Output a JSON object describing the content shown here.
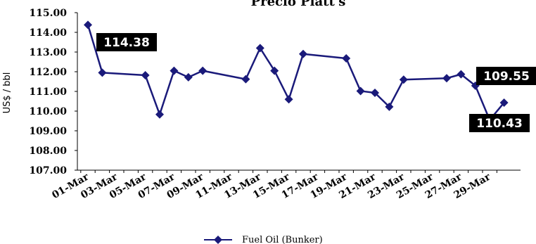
{
  "chart_data": {
    "type": "line",
    "title": "Precio Platt's",
    "ylabel": "US$ / bbl",
    "xlabel": "",
    "ylim": [
      107,
      115
    ],
    "ytick_step": 1,
    "ytick_decimals": 2,
    "x_tick_labels": [
      "01-Mar",
      "03-Mar",
      "05-Mar",
      "07-Mar",
      "09-Mar",
      "11-Mar",
      "13-Mar",
      "15-Mar",
      "17-Mar",
      "19-Mar",
      "21-Mar",
      "23-Mar",
      "25-Mar",
      "27-Mar",
      "29-Mar"
    ],
    "x_day_range": [
      1,
      30
    ],
    "grid": false,
    "legend_position": "bottom",
    "color": "#1a1a7a",
    "series": [
      {
        "name": "Fuel Oil (Bunker)",
        "days": [
          1,
          2,
          5,
          6,
          7,
          8,
          9,
          12,
          13,
          14,
          15,
          16,
          19,
          20,
          21,
          22,
          23,
          26,
          27,
          28,
          29,
          30
        ],
        "values": [
          114.38,
          111.95,
          111.82,
          109.83,
          112.05,
          111.72,
          112.05,
          111.62,
          113.2,
          112.05,
          110.6,
          112.9,
          112.68,
          111.02,
          110.93,
          110.22,
          111.6,
          111.67,
          111.87,
          111.29,
          109.55,
          110.43
        ]
      }
    ],
    "data_labels": [
      {
        "text": "114.38",
        "day": 1,
        "value": 114.38
      },
      {
        "text": "109.55",
        "day": 29,
        "value": 109.55
      },
      {
        "text": "110.43",
        "day": 30,
        "value": 110.43
      }
    ]
  }
}
